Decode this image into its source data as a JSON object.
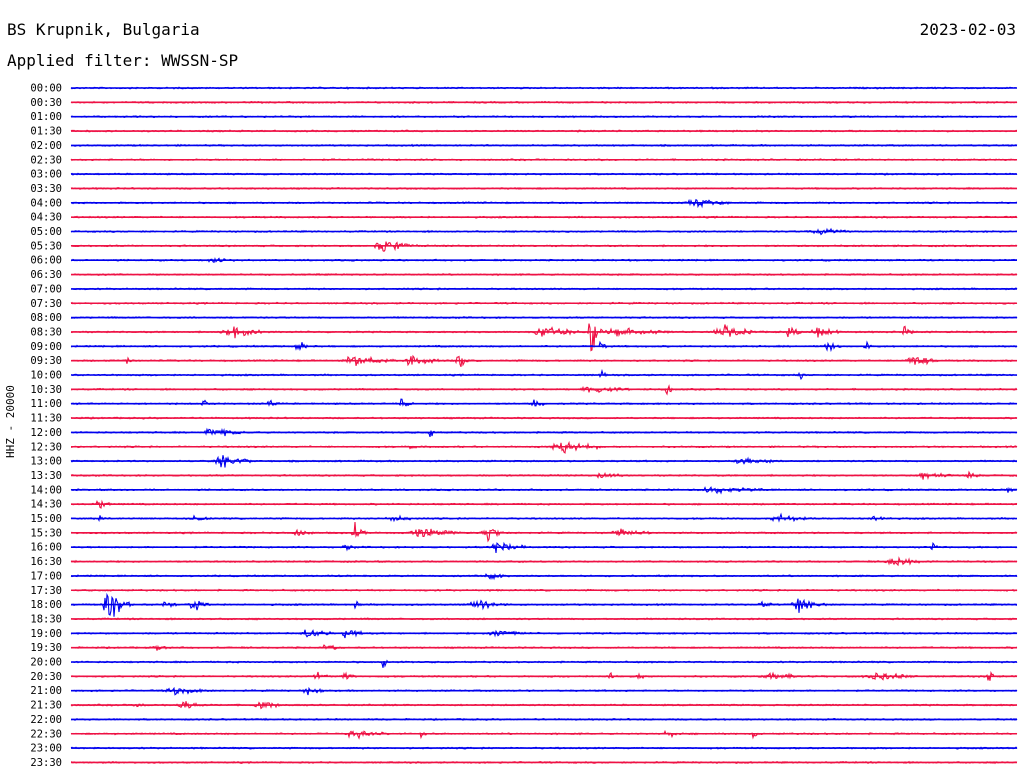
{
  "header": {
    "station": "BS Krupnik, Bulgaria",
    "filter": "Applied filter: WWSSN-SP",
    "date": "2023-02-03"
  },
  "chart_data": {
    "type": "line",
    "ylabel": "HHZ - 20000",
    "colors": [
      "#0000ee",
      "#ee1144"
    ],
    "rows": [
      {
        "label": "00:00",
        "events": []
      },
      {
        "label": "00:30",
        "events": []
      },
      {
        "label": "01:00",
        "events": []
      },
      {
        "label": "01:30",
        "events": []
      },
      {
        "label": "02:00",
        "events": []
      },
      {
        "label": "02:30",
        "events": []
      },
      {
        "label": "03:00",
        "events": []
      },
      {
        "label": "03:30",
        "events": []
      },
      {
        "label": "04:00",
        "events": [
          {
            "t": 0.66,
            "a": 5,
            "w": 0.06
          }
        ]
      },
      {
        "label": "04:30",
        "events": []
      },
      {
        "label": "05:00",
        "events": [
          {
            "t": 0.79,
            "a": 5,
            "w": 0.06
          }
        ]
      },
      {
        "label": "05:30",
        "events": [
          {
            "t": 0.33,
            "a": 8,
            "w": 0.06
          }
        ]
      },
      {
        "label": "06:00",
        "events": [
          {
            "t": 0.15,
            "a": 3,
            "w": 0.04
          }
        ]
      },
      {
        "label": "06:30",
        "events": []
      },
      {
        "label": "07:00",
        "events": []
      },
      {
        "label": "07:30",
        "events": []
      },
      {
        "label": "08:00",
        "events": []
      },
      {
        "label": "08:30",
        "events": [
          {
            "t": 0.17,
            "a": 7,
            "w": 0.07
          },
          {
            "t": 0.5,
            "a": 9,
            "w": 0.06
          },
          {
            "t": 0.55,
            "a": 28,
            "w": 0.02
          },
          {
            "t": 0.58,
            "a": 6,
            "w": 0.09
          },
          {
            "t": 0.69,
            "a": 8,
            "w": 0.06
          },
          {
            "t": 0.76,
            "a": 10,
            "w": 0.02
          },
          {
            "t": 0.79,
            "a": 8,
            "w": 0.04
          },
          {
            "t": 0.88,
            "a": 8,
            "w": 0.02
          }
        ]
      },
      {
        "label": "09:00",
        "events": [
          {
            "t": 0.24,
            "a": 9,
            "w": 0.02
          },
          {
            "t": 0.56,
            "a": 9,
            "w": 0.01
          },
          {
            "t": 0.8,
            "a": 7,
            "w": 0.03
          },
          {
            "t": 0.84,
            "a": 9,
            "w": 0.01
          }
        ]
      },
      {
        "label": "09:30",
        "events": [
          {
            "t": 0.06,
            "a": 7,
            "w": 0.01
          },
          {
            "t": 0.3,
            "a": 7,
            "w": 0.07
          },
          {
            "t": 0.36,
            "a": 7,
            "w": 0.05
          },
          {
            "t": 0.41,
            "a": 11,
            "w": 0.02
          },
          {
            "t": 0.89,
            "a": 9,
            "w": 0.04
          }
        ]
      },
      {
        "label": "10:00",
        "events": [
          {
            "t": 0.56,
            "a": 7,
            "w": 0.01
          },
          {
            "t": 0.77,
            "a": 7,
            "w": 0.01
          }
        ]
      },
      {
        "label": "10:30",
        "events": [
          {
            "t": 0.55,
            "a": 4,
            "w": 0.08
          },
          {
            "t": 0.63,
            "a": 9,
            "w": 0.01
          }
        ]
      },
      {
        "label": "11:00",
        "events": [
          {
            "t": 0.14,
            "a": 6,
            "w": 0.01
          },
          {
            "t": 0.21,
            "a": 6,
            "w": 0.02
          },
          {
            "t": 0.35,
            "a": 6,
            "w": 0.02
          },
          {
            "t": 0.49,
            "a": 5,
            "w": 0.02
          }
        ]
      },
      {
        "label": "11:30",
        "events": []
      },
      {
        "label": "12:00",
        "events": [
          {
            "t": 0.15,
            "a": 6,
            "w": 0.06
          },
          {
            "t": 0.38,
            "a": 8,
            "w": 0.01
          }
        ]
      },
      {
        "label": "12:30",
        "events": [
          {
            "t": 0.36,
            "a": 7,
            "w": 0.01
          },
          {
            "t": 0.52,
            "a": 9,
            "w": 0.07
          }
        ]
      },
      {
        "label": "13:00",
        "events": [
          {
            "t": 0.16,
            "a": 10,
            "w": 0.05
          },
          {
            "t": 0.71,
            "a": 5,
            "w": 0.06
          }
        ]
      },
      {
        "label": "13:30",
        "events": [
          {
            "t": 0.56,
            "a": 5,
            "w": 0.04
          },
          {
            "t": 0.9,
            "a": 5,
            "w": 0.05
          },
          {
            "t": 0.95,
            "a": 5,
            "w": 0.02
          }
        ]
      },
      {
        "label": "14:00",
        "events": [
          {
            "t": 0.68,
            "a": 4,
            "w": 0.09
          },
          {
            "t": 0.99,
            "a": 8,
            "w": 0.01
          }
        ]
      },
      {
        "label": "14:30",
        "events": [
          {
            "t": 0.03,
            "a": 8,
            "w": 0.02
          }
        ]
      },
      {
        "label": "15:00",
        "events": [
          {
            "t": 0.03,
            "a": 5,
            "w": 0.01
          },
          {
            "t": 0.13,
            "a": 3,
            "w": 0.03
          },
          {
            "t": 0.34,
            "a": 4,
            "w": 0.04
          },
          {
            "t": 0.75,
            "a": 5,
            "w": 0.06
          },
          {
            "t": 0.85,
            "a": 4,
            "w": 0.03
          }
        ]
      },
      {
        "label": "15:30",
        "events": [
          {
            "t": 0.24,
            "a": 5,
            "w": 0.03
          },
          {
            "t": 0.3,
            "a": 12,
            "w": 0.02
          },
          {
            "t": 0.37,
            "a": 7,
            "w": 0.07
          },
          {
            "t": 0.44,
            "a": 10,
            "w": 0.03
          },
          {
            "t": 0.58,
            "a": 4,
            "w": 0.06
          }
        ]
      },
      {
        "label": "16:00",
        "events": [
          {
            "t": 0.29,
            "a": 6,
            "w": 0.02
          },
          {
            "t": 0.45,
            "a": 8,
            "w": 0.05
          },
          {
            "t": 0.91,
            "a": 7,
            "w": 0.01
          }
        ]
      },
      {
        "label": "16:30",
        "events": [
          {
            "t": 0.87,
            "a": 6,
            "w": 0.05
          }
        ]
      },
      {
        "label": "17:00",
        "events": [
          {
            "t": 0.44,
            "a": 5,
            "w": 0.04
          }
        ]
      },
      {
        "label": "17:30",
        "events": []
      },
      {
        "label": "18:00",
        "events": [
          {
            "t": 0.04,
            "a": 22,
            "w": 0.04
          },
          {
            "t": 0.1,
            "a": 7,
            "w": 0.02
          },
          {
            "t": 0.13,
            "a": 8,
            "w": 0.03
          },
          {
            "t": 0.3,
            "a": 9,
            "w": 0.01
          },
          {
            "t": 0.43,
            "a": 5,
            "w": 0.06
          },
          {
            "t": 0.73,
            "a": 5,
            "w": 0.02
          },
          {
            "t": 0.77,
            "a": 9,
            "w": 0.05
          }
        ]
      },
      {
        "label": "18:30",
        "events": []
      },
      {
        "label": "19:00",
        "events": [
          {
            "t": 0.25,
            "a": 7,
            "w": 0.04
          },
          {
            "t": 0.29,
            "a": 9,
            "w": 0.03
          },
          {
            "t": 0.45,
            "a": 4,
            "w": 0.06
          }
        ]
      },
      {
        "label": "19:30",
        "events": [
          {
            "t": 0.09,
            "a": 4,
            "w": 0.02
          },
          {
            "t": 0.27,
            "a": 7,
            "w": 0.02
          }
        ]
      },
      {
        "label": "20:00",
        "events": [
          {
            "t": 0.33,
            "a": 7,
            "w": 0.01
          }
        ]
      },
      {
        "label": "20:30",
        "events": [
          {
            "t": 0.26,
            "a": 5,
            "w": 0.02
          },
          {
            "t": 0.29,
            "a": 5,
            "w": 0.02
          },
          {
            "t": 0.57,
            "a": 8,
            "w": 0.01
          },
          {
            "t": 0.6,
            "a": 7,
            "w": 0.01
          },
          {
            "t": 0.74,
            "a": 5,
            "w": 0.06
          },
          {
            "t": 0.85,
            "a": 5,
            "w": 0.08
          },
          {
            "t": 0.97,
            "a": 10,
            "w": 0.01
          }
        ]
      },
      {
        "label": "21:00",
        "events": [
          {
            "t": 0.11,
            "a": 5,
            "w": 0.06
          },
          {
            "t": 0.25,
            "a": 5,
            "w": 0.03
          }
        ]
      },
      {
        "label": "21:30",
        "events": [
          {
            "t": 0.07,
            "a": 4,
            "w": 0.02
          },
          {
            "t": 0.12,
            "a": 5,
            "w": 0.04
          },
          {
            "t": 0.2,
            "a": 5,
            "w": 0.04
          }
        ]
      },
      {
        "label": "22:00",
        "events": []
      },
      {
        "label": "22:30",
        "events": [
          {
            "t": 0.3,
            "a": 7,
            "w": 0.05
          },
          {
            "t": 0.37,
            "a": 6,
            "w": 0.01
          },
          {
            "t": 0.63,
            "a": 4,
            "w": 0.03
          },
          {
            "t": 0.72,
            "a": 10,
            "w": 0.01
          }
        ]
      },
      {
        "label": "23:00",
        "events": []
      },
      {
        "label": "23:30",
        "events": []
      }
    ]
  }
}
